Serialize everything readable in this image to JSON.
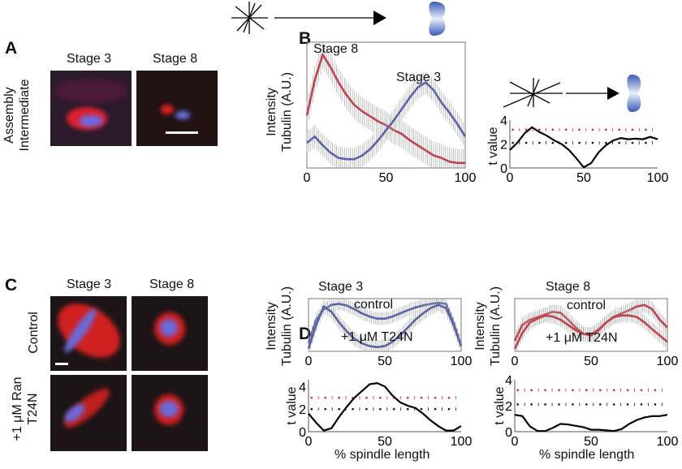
{
  "panels": {
    "A": "A",
    "B": "B",
    "C": "C",
    "D": "D"
  },
  "A": {
    "col1": "Stage 3",
    "col2": "Stage 8",
    "row_label_1": "Assembly",
    "row_label_2": "Intermediate"
  },
  "C": {
    "col1": "Stage 3",
    "col2": "Stage 8",
    "row1": "Control",
    "row2_line1": "+1 μM Ran",
    "row2_line2": "T24N"
  },
  "labels": {
    "ylabel1": "Intensity",
    "ylabel2": "Tubulin (A.U.)",
    "tlabel": "t value",
    "xlabel": "% spindle length",
    "stage3": "Stage 3",
    "stage8": "Stage 8",
    "control": "control",
    "t24n": "+1 μM T24N"
  },
  "colors": {
    "red": "#c0444e",
    "blue": "#5a64a8",
    "error": "#a8a8a8",
    "thr_red": "#cc2222",
    "thr_black": "#111111"
  },
  "icons": [
    "aster-icon",
    "arrow-icon",
    "spindle-icon"
  ],
  "chart_data": [
    {
      "id": "B-profile",
      "type": "line",
      "xlim": [
        0,
        100
      ],
      "xticks": [
        0,
        50,
        100
      ],
      "ylabel": "Intensity Tubulin (A.U.)",
      "x": [
        0,
        5,
        10,
        15,
        20,
        25,
        30,
        35,
        40,
        45,
        50,
        55,
        60,
        65,
        70,
        75,
        80,
        85,
        90,
        95,
        100
      ],
      "series": [
        {
          "name": "Stage 8",
          "color": "#c0444e",
          "error": 0.11,
          "values": [
            0.42,
            0.7,
            0.9,
            0.8,
            0.68,
            0.58,
            0.5,
            0.45,
            0.41,
            0.37,
            0.34,
            0.3,
            0.27,
            0.22,
            0.18,
            0.14,
            0.1,
            0.08,
            0.05,
            0.04,
            0.04
          ]
        },
        {
          "name": "Stage 3",
          "color": "#5a64a8",
          "error": 0.09,
          "values": [
            0.2,
            0.25,
            0.18,
            0.12,
            0.08,
            0.07,
            0.07,
            0.1,
            0.15,
            0.22,
            0.3,
            0.38,
            0.47,
            0.56,
            0.64,
            0.68,
            0.62,
            0.52,
            0.44,
            0.35,
            0.25
          ]
        }
      ]
    },
    {
      "id": "B-t",
      "type": "line",
      "xlim": [
        0,
        100
      ],
      "ylim": [
        0,
        4
      ],
      "xticks": [
        0,
        50,
        100
      ],
      "yticks": [
        0,
        2,
        4
      ],
      "ylabel": "t value",
      "thresholds": [
        3.2,
        2.1
      ],
      "x": [
        0,
        5,
        10,
        15,
        20,
        25,
        30,
        35,
        40,
        45,
        50,
        55,
        60,
        65,
        70,
        75,
        80,
        85,
        90,
        95,
        100
      ],
      "values": [
        1.5,
        2.1,
        2.9,
        3.4,
        3.0,
        2.7,
        2.3,
        2.0,
        1.5,
        0.8,
        0.05,
        0.4,
        1.3,
        1.9,
        2.3,
        2.5,
        2.4,
        2.45,
        2.4,
        2.6,
        2.4
      ]
    },
    {
      "id": "D3-profile",
      "type": "line",
      "title": "Stage 3",
      "xlim": [
        0,
        100
      ],
      "xticks": [
        0,
        50,
        100
      ],
      "x": [
        0,
        5,
        10,
        15,
        20,
        25,
        30,
        35,
        40,
        45,
        50,
        55,
        60,
        65,
        70,
        75,
        80,
        85,
        90,
        95,
        100
      ],
      "series": [
        {
          "name": "control",
          "color": "#5a64a8",
          "error": 0.12,
          "values": [
            0.15,
            0.6,
            0.8,
            0.88,
            0.9,
            0.87,
            0.8,
            0.72,
            0.66,
            0.62,
            0.62,
            0.66,
            0.72,
            0.78,
            0.83,
            0.87,
            0.9,
            0.92,
            0.9,
            0.55,
            0.1
          ]
        },
        {
          "name": "+1 μM T24N",
          "color": "#5a64a8",
          "error": 0.13,
          "values": [
            0.05,
            0.5,
            0.85,
            0.75,
            0.55,
            0.38,
            0.24,
            0.15,
            0.1,
            0.08,
            0.1,
            0.18,
            0.3,
            0.45,
            0.6,
            0.72,
            0.82,
            0.88,
            0.82,
            0.5,
            0.1
          ]
        }
      ]
    },
    {
      "id": "D3-t",
      "type": "line",
      "xlim": [
        0,
        100
      ],
      "ylim": [
        0,
        4.6
      ],
      "xticks": [
        0,
        50,
        100
      ],
      "yticks": [
        0,
        2,
        4
      ],
      "xlabel": "% spindle length",
      "thresholds": [
        3.0,
        2.0
      ],
      "x": [
        0,
        5,
        10,
        15,
        20,
        25,
        30,
        35,
        40,
        45,
        50,
        55,
        60,
        65,
        70,
        75,
        80,
        85,
        90,
        95,
        100
      ],
      "values": [
        1.6,
        0.8,
        0.1,
        0.3,
        1.3,
        2.2,
        3.0,
        3.6,
        4.2,
        4.3,
        4.0,
        3.2,
        2.6,
        2.3,
        2.1,
        1.6,
        1.0,
        0.5,
        0.1,
        0.1,
        0.5
      ]
    },
    {
      "id": "D8-profile",
      "type": "line",
      "title": "Stage 8",
      "xlim": [
        0,
        100
      ],
      "xticks": [
        0,
        50,
        100
      ],
      "x": [
        0,
        5,
        10,
        15,
        20,
        25,
        30,
        35,
        40,
        45,
        50,
        55,
        60,
        65,
        70,
        75,
        80,
        85,
        90,
        95,
        100
      ],
      "series": [
        {
          "name": "control",
          "color": "#c0444e",
          "error": 0.14,
          "values": [
            0.2,
            0.5,
            0.6,
            0.65,
            0.7,
            0.75,
            0.73,
            0.6,
            0.45,
            0.33,
            0.32,
            0.42,
            0.55,
            0.66,
            0.72,
            0.78,
            0.85,
            0.88,
            0.8,
            0.6,
            0.45
          ]
        },
        {
          "name": "+1 μM T24N",
          "color": "#c0444e",
          "error": 0.13,
          "values": [
            0.05,
            0.35,
            0.55,
            0.62,
            0.68,
            0.66,
            0.6,
            0.5,
            0.4,
            0.33,
            0.3,
            0.4,
            0.55,
            0.65,
            0.68,
            0.68,
            0.65,
            0.55,
            0.42,
            0.3,
            0.18
          ]
        }
      ]
    },
    {
      "id": "D8-t",
      "type": "line",
      "xlim": [
        0,
        100
      ],
      "ylim": [
        0,
        4
      ],
      "xticks": [
        0,
        50,
        100
      ],
      "yticks": [
        0,
        2,
        4
      ],
      "xlabel": "% spindle length",
      "ylabel": "t value",
      "thresholds": [
        3.2,
        2.1
      ],
      "x": [
        0,
        5,
        10,
        15,
        20,
        25,
        30,
        35,
        40,
        45,
        50,
        55,
        60,
        65,
        70,
        75,
        80,
        85,
        90,
        95,
        100
      ],
      "values": [
        1.3,
        1.2,
        0.4,
        0.05,
        0.05,
        0.3,
        0.6,
        0.55,
        0.45,
        0.35,
        0.15,
        0.15,
        0.1,
        0.05,
        0.2,
        0.6,
        0.9,
        1.1,
        1.2,
        1.2,
        1.3
      ]
    }
  ]
}
